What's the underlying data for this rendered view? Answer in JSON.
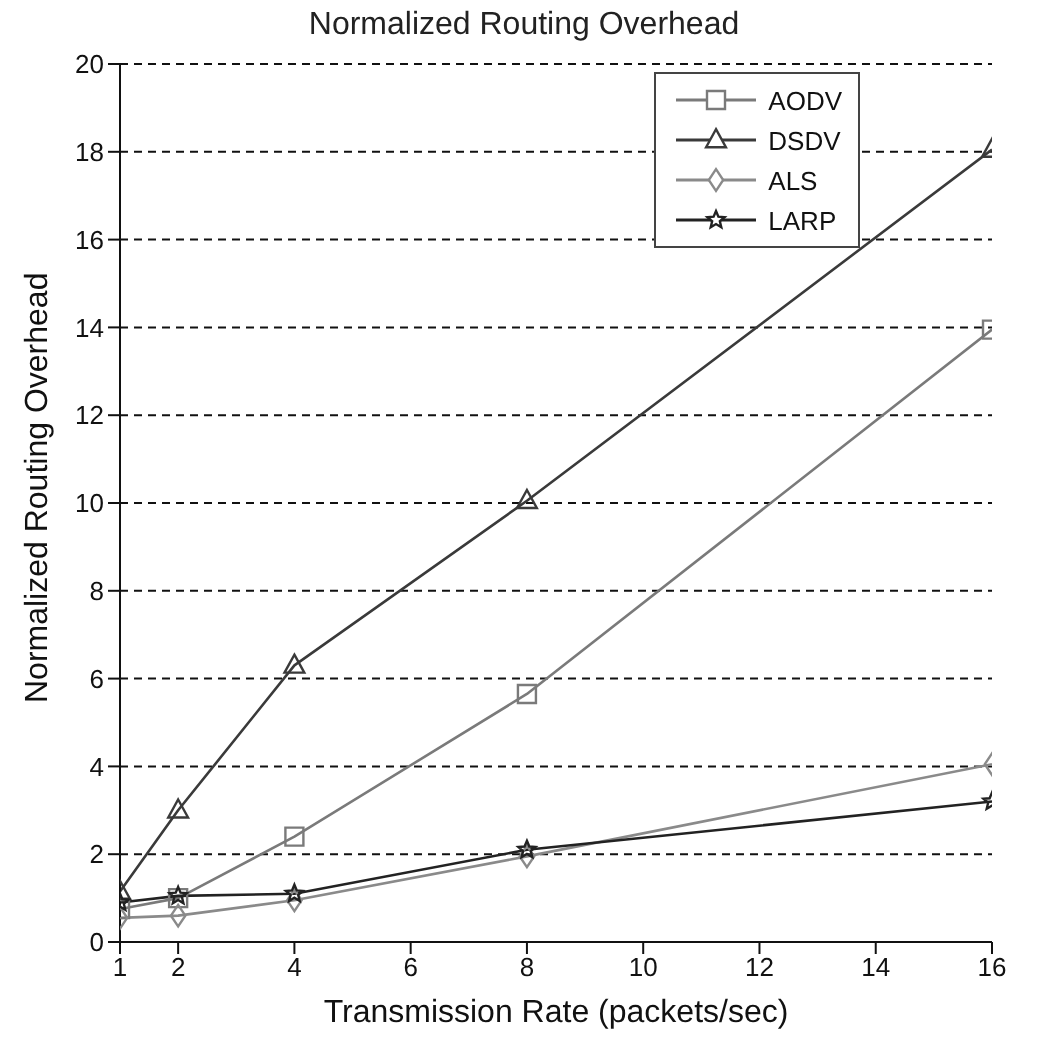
{
  "chart_data": {
    "type": "line",
    "title": "Normalized Routing Overhead",
    "xlabel": "Transmission Rate (packets/sec)",
    "ylabel": "Normalized Routing Overhead",
    "x": [
      1,
      2,
      4,
      8,
      16
    ],
    "series": [
      {
        "name": "AODV",
        "color": "#7a7a7a",
        "marker": "square",
        "values": [
          0.75,
          1.0,
          2.4,
          5.65,
          13.95
        ]
      },
      {
        "name": "DSDV",
        "color": "#3a3a3a",
        "marker": "triangle",
        "values": [
          1.15,
          3.0,
          6.3,
          10.05,
          18.05
        ]
      },
      {
        "name": "ALS",
        "color": "#8a8a8a",
        "marker": "diamond",
        "values": [
          0.55,
          0.6,
          0.95,
          1.95,
          4.05
        ]
      },
      {
        "name": "LARP",
        "color": "#222222",
        "marker": "star",
        "values": [
          0.9,
          1.05,
          1.1,
          2.1,
          3.2
        ]
      }
    ],
    "xlim": [
      1,
      16
    ],
    "xticks": [
      1,
      2,
      4,
      6,
      8,
      10,
      12,
      14,
      16
    ],
    "ylim": [
      0,
      20
    ],
    "yticks": [
      0,
      2,
      4,
      6,
      8,
      10,
      12,
      14,
      16,
      18,
      20
    ],
    "grid": "y",
    "legend": "top right",
    "line_style": "solid"
  }
}
